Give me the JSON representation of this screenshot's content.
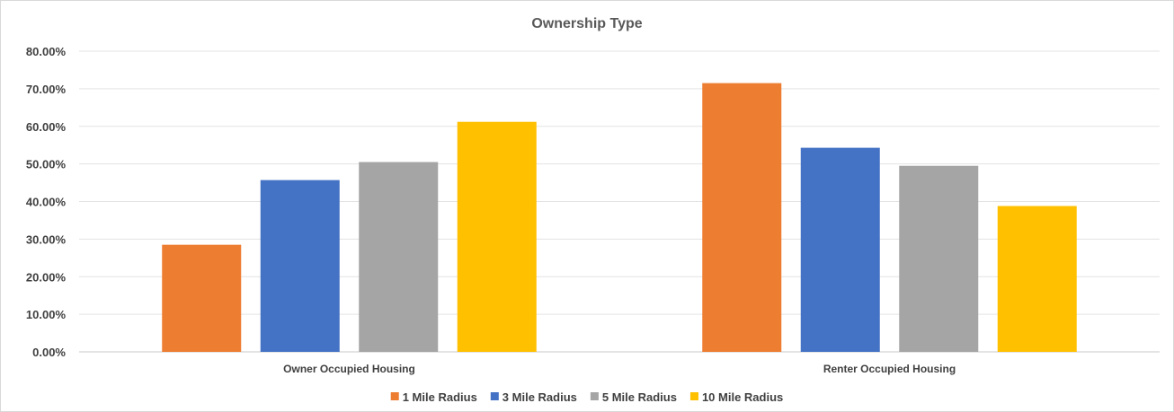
{
  "chart_data": {
    "type": "bar",
    "title": "Ownership Type",
    "xlabel": "",
    "ylabel": "",
    "categories": [
      "Owner Occupied Housing",
      "Renter Occupied Housing"
    ],
    "series": [
      {
        "name": "1 Mile Radius",
        "color": "#ED7D31",
        "values": [
          0.285,
          0.715
        ]
      },
      {
        "name": "3 Mile Radius",
        "color": "#4472C4",
        "values": [
          0.457,
          0.543
        ]
      },
      {
        "name": "5 Mile Radius",
        "color": "#A5A5A5",
        "values": [
          0.505,
          0.495
        ]
      },
      {
        "name": "10 Mile Radius",
        "color": "#FFC000",
        "values": [
          0.612,
          0.388
        ]
      }
    ],
    "ylim": [
      0,
      0.8
    ],
    "yticks": [
      "0.00%",
      "10.00%",
      "20.00%",
      "30.00%",
      "40.00%",
      "50.00%",
      "60.00%",
      "70.00%",
      "80.00%"
    ],
    "grid": true,
    "legend_position": "bottom"
  }
}
